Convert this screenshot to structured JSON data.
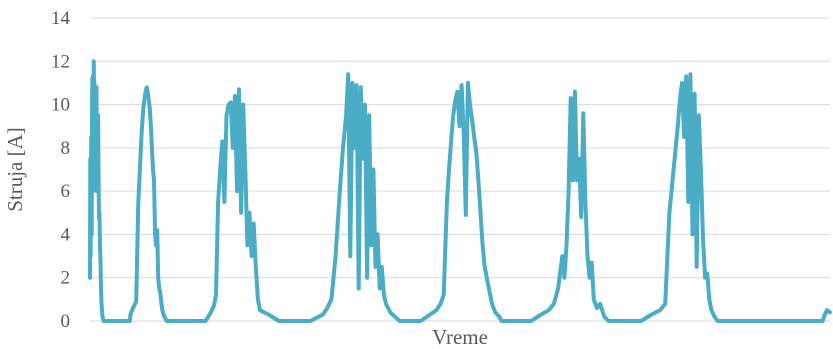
{
  "chart_data": {
    "type": "line",
    "title": "",
    "xlabel": "Vreme",
    "ylabel": "Struja [A]",
    "ylim": [
      0,
      14
    ],
    "yticks": [
      0,
      2,
      4,
      6,
      8,
      10,
      12,
      14
    ],
    "grid": true,
    "legend": "none",
    "colors": {
      "line": "#4BACC6",
      "grid": "#D9D9D9",
      "text": "#595959"
    },
    "series": [
      {
        "x": [
          0,
          0.3,
          0.6,
          0.9,
          1.2,
          1.6,
          1.9,
          2.2,
          2.5,
          2.7,
          3.0,
          3.3,
          3.6,
          4.0,
          4.3,
          4.6,
          4.9,
          5.2,
          5.5,
          5.8,
          6.2,
          6.6,
          7.0,
          7.3,
          7.7,
          8.2,
          8.6,
          9.0,
          9.5,
          10.0,
          10.5,
          11.0,
          11.5,
          12.0,
          12.5,
          13.0,
          13.5,
          14.0,
          14.5,
          15.0,
          16.0,
          17.0,
          18.0,
          19.0,
          20.0,
          21.0,
          22.0,
          23.0,
          24.0,
          25.0,
          26.0,
          27.0,
          28.0,
          29.0,
          30.0,
          31.0,
          32.0,
          33.0,
          34.0,
          35.0,
          36.0,
          37.0,
          38.0,
          38.5,
          40.0,
          42.0,
          44.0,
          46.0,
          48.0,
          49.0,
          50.0,
          51.0,
          52.0,
          53.0,
          54.0,
          55.0,
          56.0,
          57.0,
          58.0,
          59.0,
          60.0,
          61.0,
          62.0,
          63.0,
          64.0,
          65.0,
          66.0,
          67.0,
          68.0,
          69.0,
          70.0,
          71.0,
          72.0,
          73.0,
          74.0,
          75.0,
          76.0,
          77.0,
          78.0,
          80.0,
          82.0,
          84.0,
          90.0,
          95.0,
          100.0,
          105.0,
          110.0,
          114.0,
          116.0,
          118.0,
          120.0,
          122.0,
          124.0,
          126.0,
          128.0,
          130.0,
          132.0,
          134.0,
          136.0,
          138.0,
          140.0,
          142.0,
          144.0,
          146.0,
          148.0,
          150.0,
          152.0,
          154.0,
          156.0,
          158.0,
          160.0,
          162.0,
          170.0,
          180.0,
          190.0,
          200.0,
          210.0,
          222.0,
          226.0,
          230.0,
          234.0,
          238.0,
          241.0,
          244.0,
          246.0,
          248.0,
          250.0,
          252.0,
          254.0,
          256.0,
          258.0,
          260.0,
          262.0,
          264.0,
          266.0,
          268.0,
          270.0,
          272.0,
          274.0,
          276.0,
          278.0,
          280.0,
          282.0,
          284.0,
          286.0,
          295.0,
          305.0,
          315.0,
          324.0,
          330.0,
          334.0,
          337.0,
          340.0,
          342.0,
          344.0,
          346.0,
          348.0,
          350.0,
          352.0,
          354.0,
          356.0,
          358.0,
          360.0,
          362.0,
          364.0,
          366.0,
          368.0,
          370.0,
          372.0,
          374.0,
          376.0,
          378.0,
          380.0,
          383.0,
          386.0,
          390.0,
          392.0,
          400.0,
          410.0,
          420.0,
          430.0,
          437.0,
          442.0,
          446.0,
          450.0,
          452.0,
          454.0,
          456.0,
          458.0,
          460.0,
          462.0,
          464.0,
          466.0,
          468.0,
          470.0,
          472.0,
          474.0,
          476.0,
          478.0,
          480.0,
          483.0,
          486.0,
          490.0,
          494.0,
          505.0,
          515.0,
          525.0,
          535.0,
          543.0,
          548.0,
          552.0,
          556.0,
          560.0,
          562.0,
          564.0,
          566.0,
          568.0,
          570.0,
          572.0,
          574.0,
          576.0,
          578.0,
          580.0,
          582.0,
          584.0,
          586.0,
          588.0,
          590.0,
          592.0,
          595.0,
          598.0,
          602.0,
          610.0,
          620.0,
          630.0,
          640.0,
          646.0,
          650.0,
          654.0,
          658.0,
          660.0,
          662.0,
          664.0,
          666.0,
          668.0,
          670.0,
          672.0,
          674.0,
          676.0,
          678.0,
          680.0,
          682.0,
          684.0,
          686.0,
          688.0,
          690.0,
          692.0,
          695.0,
          698.0,
          700.0,
          702.0,
          705.0
        ],
        "y": [
          2.0,
          7.5,
          3.0,
          6.0,
          8.5,
          4.0,
          9.0,
          11.2,
          7.0,
          11.3,
          6.0,
          10.5,
          12.0,
          9.0,
          11.0,
          6.8,
          10.0,
          7.0,
          6.5,
          9.0,
          10.8,
          6.0,
          8.0,
          6.2,
          9.5,
          6.5,
          4.8,
          5.0,
          3.5,
          2.8,
          1.5,
          0.8,
          0.4,
          0.2,
          0.1,
          0.0,
          0.0,
          0.0,
          0.0,
          0.0,
          0.0,
          0.0,
          0.0,
          0.0,
          0.0,
          0.0,
          0.0,
          0.0,
          0.0,
          0.0,
          0.0,
          0.0,
          0.0,
          0.0,
          0.0,
          0.0,
          0.0,
          0.0,
          0.0,
          0.0,
          0.0,
          0.0,
          0.0,
          0.3,
          0.5,
          0.7,
          0.9,
          5.5,
          7.5,
          8.5,
          9.3,
          9.9,
          10.3,
          10.6,
          10.8,
          10.6,
          10.2,
          9.8,
          9.0,
          8.0,
          7.0,
          6.5,
          4.0,
          3.5,
          4.2,
          2.0,
          1.5,
          1.3,
          0.8,
          0.5,
          0.3,
          0.2,
          0.1,
          0.0,
          0.0,
          0.0,
          0.0,
          0.0,
          0.0,
          0.0,
          0.0,
          0.0,
          0.0,
          0.0,
          0.0,
          0.0,
          0.0,
          0.3,
          0.5,
          0.7,
          1.2,
          5.5,
          7.0,
          8.3,
          5.5,
          9.5,
          10.0,
          10.1,
          8.0,
          10.4,
          6.0,
          10.7,
          5.0,
          10.0,
          7.0,
          3.5,
          5.0,
          3.0,
          4.5,
          2.5,
          1.0,
          0.5,
          0.3,
          0.0,
          0.0,
          0.0,
          0.0,
          0.3,
          0.6,
          1.0,
          3.0,
          6.0,
          8.0,
          9.5,
          11.4,
          3.0,
          11.0,
          8.0,
          10.9,
          1.5,
          10.8,
          7.5,
          10.0,
          2.0,
          9.5,
          3.5,
          7.0,
          2.5,
          4.0,
          1.5,
          2.5,
          1.2,
          0.8,
          0.6,
          0.4,
          0.0,
          0.0,
          0.0,
          0.3,
          0.5,
          0.8,
          1.2,
          5.5,
          7.0,
          8.3,
          9.5,
          10.2,
          10.6,
          9.0,
          10.9,
          8.7,
          4.9,
          11.0,
          10.0,
          9.3,
          8.5,
          7.8,
          6.5,
          5.0,
          3.5,
          2.5,
          2.0,
          1.5,
          0.8,
          0.4,
          0.2,
          0.0,
          0.0,
          0.0,
          0.0,
          0.3,
          0.5,
          0.8,
          1.5,
          3.0,
          2.0,
          3.5,
          6.0,
          10.3,
          6.5,
          10.6,
          6.5,
          7.5,
          4.8,
          9.6,
          5.5,
          3.0,
          2.0,
          2.7,
          1.0,
          0.6,
          0.8,
          0.2,
          0.0,
          0.0,
          0.0,
          0.0,
          0.3,
          0.5,
          0.8,
          5.0,
          7.0,
          9.0,
          10.2,
          11.0,
          8.5,
          11.3,
          5.5,
          11.4,
          4.0,
          10.5,
          2.5,
          9.5,
          7.0,
          3.8,
          2.0,
          2.2,
          1.0,
          0.5,
          0.2,
          0.0,
          0.0,
          0.0,
          0.0,
          0.0,
          0.0,
          0.0,
          0.0,
          0.0,
          0.0,
          0.0,
          0.0,
          0.0,
          0.0,
          0.0,
          0.0,
          0.0,
          0.0,
          0.0,
          0.0,
          0.0,
          0.0,
          0.0,
          0.0,
          0.0,
          0.0,
          0.0,
          0.0,
          0.0,
          0.3,
          0.5,
          0.4
        ]
      }
    ]
  }
}
